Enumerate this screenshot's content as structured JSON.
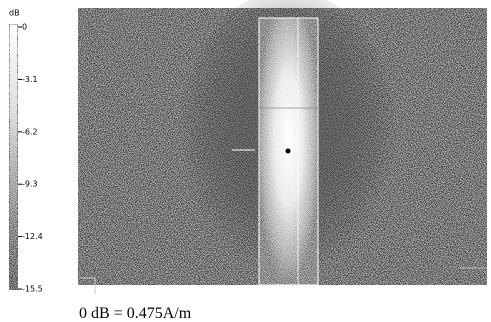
{
  "colorbar": {
    "unit": "dB",
    "ticks": [
      "0",
      "-3.1",
      "-6.2",
      "-9.3",
      "-12.4",
      "-15.5"
    ]
  },
  "caption": "0 dB = 0.475A/m"
}
